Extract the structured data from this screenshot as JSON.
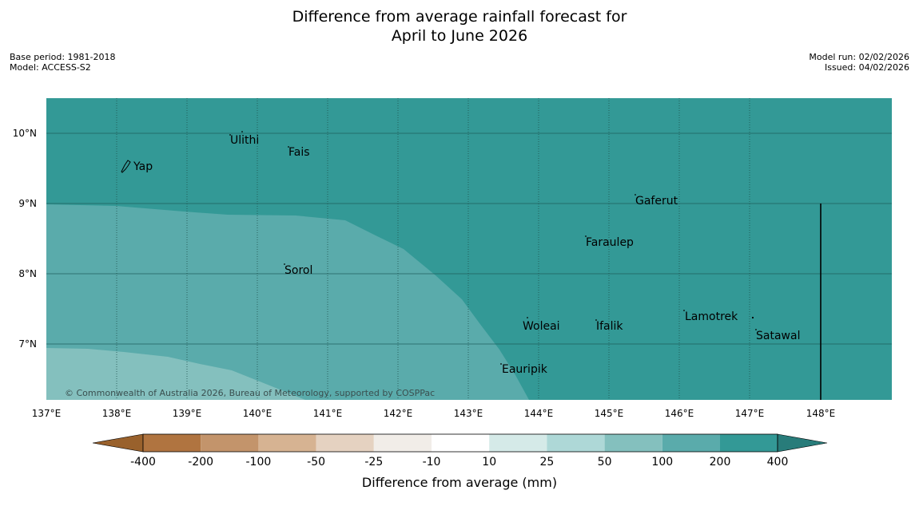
{
  "title_line1": "Difference from average rainfall forecast for",
  "title_line2": "April to June 2026",
  "base_period": "Base period: 1981-2018",
  "model": "Model: ACCESS-S2",
  "model_run": "Model run: 02/02/2026",
  "issued": "Issued: 04/02/2026",
  "copyright": "© Commonwealth of Australia 2026, Bureau of Meteorology, supported by COSPPac",
  "latitude_labels": [
    "10°N",
    "9°N",
    "8°N",
    "7°N"
  ],
  "longitude_labels": [
    "137°E",
    "138°E",
    "139°E",
    "140°E",
    "141°E",
    "142°E",
    "143°E",
    "144°E",
    "145°E",
    "146°E",
    "147°E",
    "148°E"
  ],
  "places": [
    {
      "name": "Ulithi"
    },
    {
      "name": "Fais"
    },
    {
      "name": "Yap"
    },
    {
      "name": "Gaferut"
    },
    {
      "name": "Faraulep"
    },
    {
      "name": "Sorol"
    },
    {
      "name": "Woleai"
    },
    {
      "name": "Ifalik"
    },
    {
      "name": "Lamotrek"
    },
    {
      "name": "Satawal"
    },
    {
      "name": "Eauripik"
    }
  ],
  "colorbar": {
    "title": "Difference from average (mm)",
    "tick_labels": [
      "-400",
      "-200",
      "-100",
      "-50",
      "-25",
      "-10",
      "10",
      "25",
      "50",
      "100",
      "200",
      "400"
    ],
    "colors": [
      "#99612c",
      "#b07440",
      "#c3946b",
      "#d6b392",
      "#e5d2c1",
      "#f1ede8",
      "#ffffff",
      "#d5eae8",
      "#aed8d7",
      "#84c0be",
      "#5aabab",
      "#339996",
      "#287c7a"
    ]
  },
  "map_colors": {
    "band_200_400": "#339996",
    "band_100_200": "#5aabab",
    "band_50_100": "#84c0be"
  }
}
